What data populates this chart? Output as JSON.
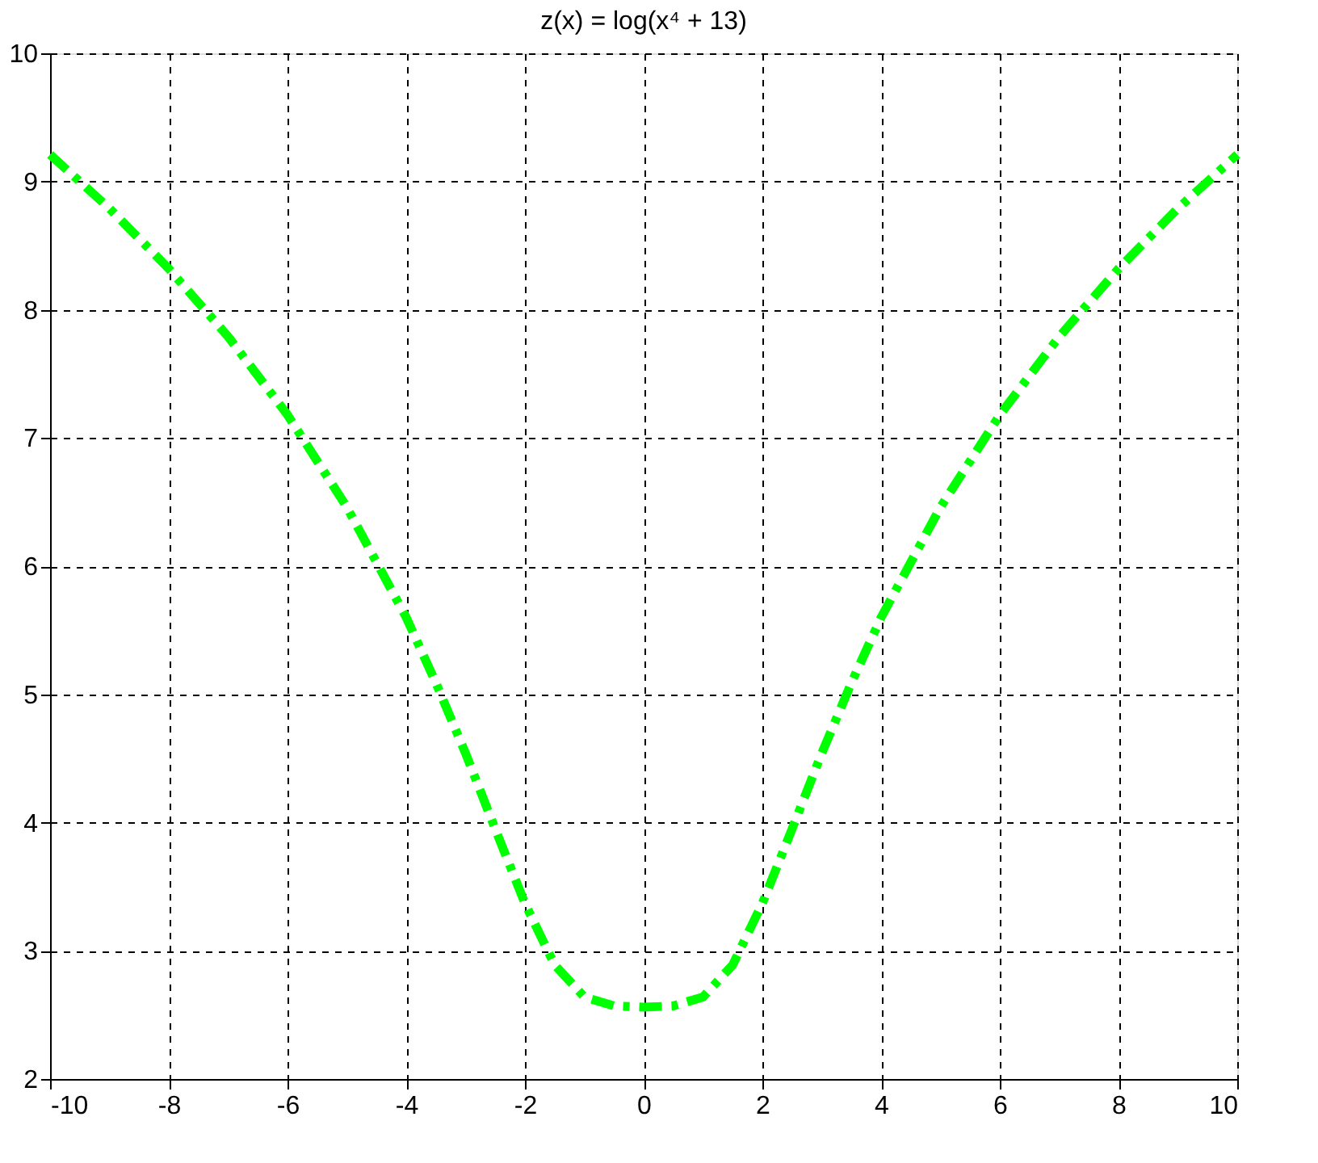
{
  "chart_data": {
    "type": "line",
    "title": "z(x) = log(x⁴ + 13)",
    "x": [
      -10,
      -9,
      -8,
      -7,
      -6,
      -5,
      -4,
      -3.5,
      -3,
      -2.5,
      -2,
      -1.5,
      -1,
      -0.5,
      0,
      0.5,
      1,
      1.5,
      2,
      2.5,
      3,
      3.5,
      4,
      5,
      6,
      7,
      8,
      9,
      10
    ],
    "series": [
      {
        "color": "#00ff00",
        "values": [
          9.21,
          8.79,
          8.32,
          7.79,
          7.18,
          6.46,
          5.6,
          5.09,
          4.54,
          3.95,
          3.37,
          2.89,
          2.64,
          2.57,
          2.56,
          2.57,
          2.64,
          2.89,
          3.37,
          3.95,
          4.54,
          5.09,
          5.6,
          6.46,
          7.18,
          7.79,
          8.32,
          8.79,
          9.21
        ]
      }
    ],
    "xlim": [
      -10,
      10
    ],
    "xticks": [
      -10,
      -8,
      -6,
      -4,
      -2,
      0,
      2,
      4,
      6,
      8,
      10
    ],
    "ylim": [
      2,
      10
    ],
    "yticks": [
      2,
      3,
      4,
      5,
      6,
      7,
      8,
      9,
      10
    ],
    "grid": true,
    "line_style": "dashed",
    "marker": "none"
  }
}
